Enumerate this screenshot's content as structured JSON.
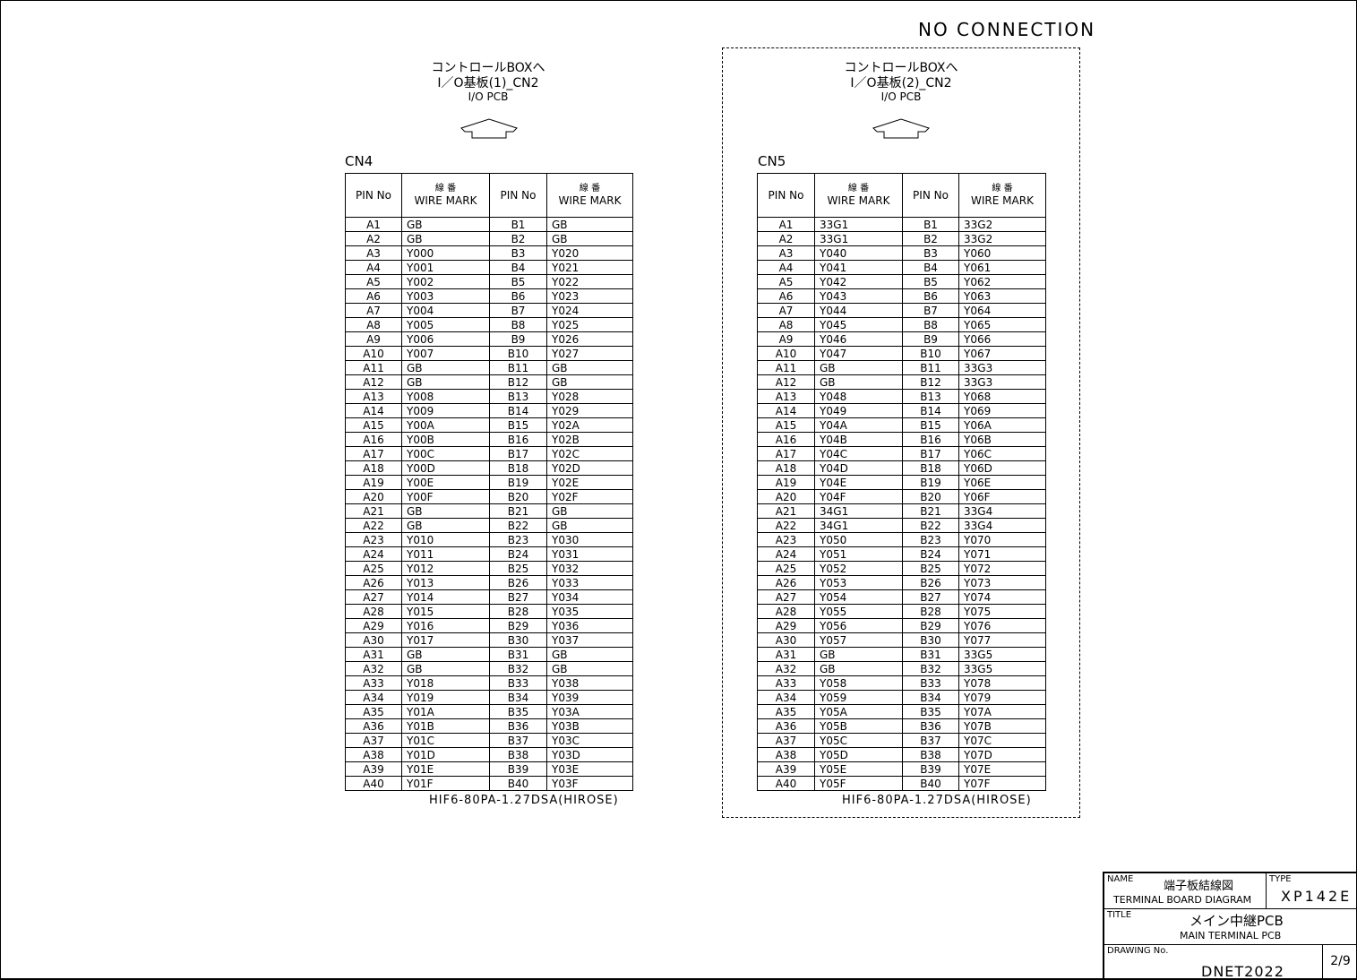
{
  "no_connection": "NO CONNECTION",
  "left": {
    "dest1": "コントロールBOXへ",
    "dest2": "I／O基板(1)_CN2",
    "dest3": "I/O PCB",
    "connector": "CN4",
    "part_no": "HIF6-80PA-1.27DSA(HIROSE)",
    "rows": [
      [
        "A1",
        "GB",
        "B1",
        "GB"
      ],
      [
        "A2",
        "GB",
        "B2",
        "GB"
      ],
      [
        "A3",
        "Y000",
        "B3",
        "Y020"
      ],
      [
        "A4",
        "Y001",
        "B4",
        "Y021"
      ],
      [
        "A5",
        "Y002",
        "B5",
        "Y022"
      ],
      [
        "A6",
        "Y003",
        "B6",
        "Y023"
      ],
      [
        "A7",
        "Y004",
        "B7",
        "Y024"
      ],
      [
        "A8",
        "Y005",
        "B8",
        "Y025"
      ],
      [
        "A9",
        "Y006",
        "B9",
        "Y026"
      ],
      [
        "A10",
        "Y007",
        "B10",
        "Y027"
      ],
      [
        "A11",
        "GB",
        "B11",
        "GB"
      ],
      [
        "A12",
        "GB",
        "B12",
        "GB"
      ],
      [
        "A13",
        "Y008",
        "B13",
        "Y028"
      ],
      [
        "A14",
        "Y009",
        "B14",
        "Y029"
      ],
      [
        "A15",
        "Y00A",
        "B15",
        "Y02A"
      ],
      [
        "A16",
        "Y00B",
        "B16",
        "Y02B"
      ],
      [
        "A17",
        "Y00C",
        "B17",
        "Y02C"
      ],
      [
        "A18",
        "Y00D",
        "B18",
        "Y02D"
      ],
      [
        "A19",
        "Y00E",
        "B19",
        "Y02E"
      ],
      [
        "A20",
        "Y00F",
        "B20",
        "Y02F"
      ],
      [
        "A21",
        "GB",
        "B21",
        "GB"
      ],
      [
        "A22",
        "GB",
        "B22",
        "GB"
      ],
      [
        "A23",
        "Y010",
        "B23",
        "Y030"
      ],
      [
        "A24",
        "Y011",
        "B24",
        "Y031"
      ],
      [
        "A25",
        "Y012",
        "B25",
        "Y032"
      ],
      [
        "A26",
        "Y013",
        "B26",
        "Y033"
      ],
      [
        "A27",
        "Y014",
        "B27",
        "Y034"
      ],
      [
        "A28",
        "Y015",
        "B28",
        "Y035"
      ],
      [
        "A29",
        "Y016",
        "B29",
        "Y036"
      ],
      [
        "A30",
        "Y017",
        "B30",
        "Y037"
      ],
      [
        "A31",
        "GB",
        "B31",
        "GB"
      ],
      [
        "A32",
        "GB",
        "B32",
        "GB"
      ],
      [
        "A33",
        "Y018",
        "B33",
        "Y038"
      ],
      [
        "A34",
        "Y019",
        "B34",
        "Y039"
      ],
      [
        "A35",
        "Y01A",
        "B35",
        "Y03A"
      ],
      [
        "A36",
        "Y01B",
        "B36",
        "Y03B"
      ],
      [
        "A37",
        "Y01C",
        "B37",
        "Y03C"
      ],
      [
        "A38",
        "Y01D",
        "B38",
        "Y03D"
      ],
      [
        "A39",
        "Y01E",
        "B39",
        "Y03E"
      ],
      [
        "A40",
        "Y01F",
        "B40",
        "Y03F"
      ]
    ]
  },
  "right": {
    "dest1": "コントロールBOXへ",
    "dest2": "I／O基板(2)_CN2",
    "dest3": "I/O PCB",
    "connector": "CN5",
    "part_no": "HIF6-80PA-1.27DSA(HIROSE)",
    "rows": [
      [
        "A1",
        "33G1",
        "B1",
        "33G2"
      ],
      [
        "A2",
        "33G1",
        "B2",
        "33G2"
      ],
      [
        "A3",
        "Y040",
        "B3",
        "Y060"
      ],
      [
        "A4",
        "Y041",
        "B4",
        "Y061"
      ],
      [
        "A5",
        "Y042",
        "B5",
        "Y062"
      ],
      [
        "A6",
        "Y043",
        "B6",
        "Y063"
      ],
      [
        "A7",
        "Y044",
        "B7",
        "Y064"
      ],
      [
        "A8",
        "Y045",
        "B8",
        "Y065"
      ],
      [
        "A9",
        "Y046",
        "B9",
        "Y066"
      ],
      [
        "A10",
        "Y047",
        "B10",
        "Y067"
      ],
      [
        "A11",
        "GB",
        "B11",
        "33G3"
      ],
      [
        "A12",
        "GB",
        "B12",
        "33G3"
      ],
      [
        "A13",
        "Y048",
        "B13",
        "Y068"
      ],
      [
        "A14",
        "Y049",
        "B14",
        "Y069"
      ],
      [
        "A15",
        "Y04A",
        "B15",
        "Y06A"
      ],
      [
        "A16",
        "Y04B",
        "B16",
        "Y06B"
      ],
      [
        "A17",
        "Y04C",
        "B17",
        "Y06C"
      ],
      [
        "A18",
        "Y04D",
        "B18",
        "Y06D"
      ],
      [
        "A19",
        "Y04E",
        "B19",
        "Y06E"
      ],
      [
        "A20",
        "Y04F",
        "B20",
        "Y06F"
      ],
      [
        "A21",
        "34G1",
        "B21",
        "33G4"
      ],
      [
        "A22",
        "34G1",
        "B22",
        "33G4"
      ],
      [
        "A23",
        "Y050",
        "B23",
        "Y070"
      ],
      [
        "A24",
        "Y051",
        "B24",
        "Y071"
      ],
      [
        "A25",
        "Y052",
        "B25",
        "Y072"
      ],
      [
        "A26",
        "Y053",
        "B26",
        "Y073"
      ],
      [
        "A27",
        "Y054",
        "B27",
        "Y074"
      ],
      [
        "A28",
        "Y055",
        "B28",
        "Y075"
      ],
      [
        "A29",
        "Y056",
        "B29",
        "Y076"
      ],
      [
        "A30",
        "Y057",
        "B30",
        "Y077"
      ],
      [
        "A31",
        "GB",
        "B31",
        "33G5"
      ],
      [
        "A32",
        "GB",
        "B32",
        "33G5"
      ],
      [
        "A33",
        "Y058",
        "B33",
        "Y078"
      ],
      [
        "A34",
        "Y059",
        "B34",
        "Y079"
      ],
      [
        "A35",
        "Y05A",
        "B35",
        "Y07A"
      ],
      [
        "A36",
        "Y05B",
        "B36",
        "Y07B"
      ],
      [
        "A37",
        "Y05C",
        "B37",
        "Y07C"
      ],
      [
        "A38",
        "Y05D",
        "B38",
        "Y07D"
      ],
      [
        "A39",
        "Y05E",
        "B39",
        "Y07E"
      ],
      [
        "A40",
        "Y05F",
        "B40",
        "Y07F"
      ]
    ]
  },
  "headers": {
    "pin": "PIN No",
    "wire_jp": "線 番",
    "wire": "WIRE MARK"
  },
  "title_block": {
    "name_label": "NAME",
    "name_jp": "端子板結線図",
    "name_en": "TERMINAL BOARD DIAGRAM",
    "type_label": "TYPE",
    "type": "XP142E",
    "title_label": "TITLE",
    "title_jp": "メイン中継PCB",
    "title_en": "MAIN TERMINAL PCB",
    "drawing_label": "DRAWING No.",
    "drawing_no": "DNET2022",
    "sheet": "2/9"
  }
}
